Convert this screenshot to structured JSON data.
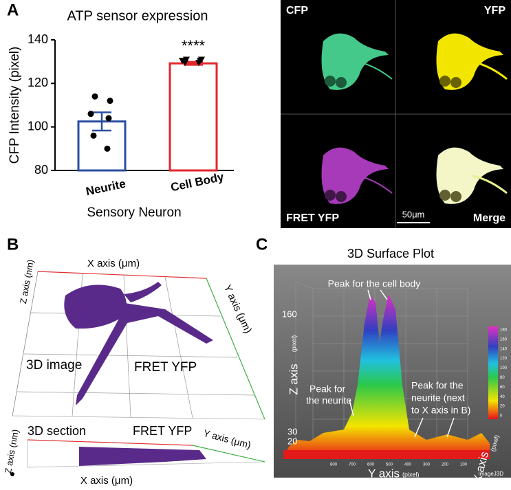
{
  "chart_data": {
    "type": "bar",
    "title": "ATP sensor expression",
    "y_label": "CFP Intensity (pixel)",
    "x_label": "Sensory Neuron",
    "categories": [
      "Neurite",
      "Cell Body"
    ],
    "values": [
      102.5,
      129.2
    ],
    "errors": [
      4.2,
      0.7
    ],
    "colors": [
      "#2a4ea0",
      "#e3262d"
    ],
    "points": [
      [
        114,
        112,
        106,
        104,
        96,
        90
      ],
      [
        131,
        131,
        130.5,
        130.5,
        129.5,
        129.5
      ]
    ],
    "point_markers": [
      "circle",
      "triangle"
    ],
    "annotation": "****",
    "ylim": [
      80,
      140
    ],
    "yticks": [
      80,
      100,
      120,
      140
    ]
  },
  "figure": {
    "panel_labels": [
      "A",
      "B",
      "C"
    ],
    "micrographs": {
      "labels": [
        "CFP",
        "YFP",
        "FRET YFP",
        "Merge"
      ],
      "scale_bar": "50μm"
    },
    "panel_b": {
      "top": {
        "x_axis": "X axis (μm)",
        "z_axis": "Z axis (nm)",
        "y_axis": "Y axis (μm)",
        "label": "3D image",
        "sensor": "FRET YFP"
      },
      "bottom": {
        "label": "3D section",
        "sensor": "FRET YFP",
        "z_axis": "Z axis (nm)",
        "y_axis": "Y axis (μm)",
        "x_axis": "X axis (μm)"
      }
    },
    "panel_c": {
      "title": "3D Surface Plot",
      "peak_cell_body": "Peak for the cell body",
      "peak_neurite": [
        "Peak for",
        "the neurite"
      ],
      "peak_neurite_next": [
        "Peak for the",
        "neurite (next",
        "to X axis in B)"
      ],
      "z_axis": "Z axis",
      "y_axis": "Y axis",
      "x_axis": "X axis",
      "unit": "(pixel)",
      "z_ticks": [
        "160",
        "30",
        "20"
      ],
      "y_ticks": [
        "800",
        "700",
        "600",
        "500",
        "400",
        "300",
        "200",
        "100"
      ],
      "colorbar_ticks": [
        "180",
        "160",
        "140",
        "120",
        "100",
        "80",
        "60",
        "40",
        "20",
        "0"
      ],
      "watermark": "ImageJ3D"
    }
  }
}
